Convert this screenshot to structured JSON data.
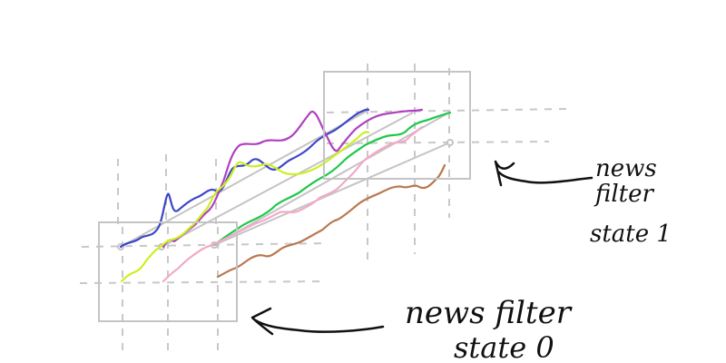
{
  "annotations": {
    "state1_line1": "news",
    "state1_line2": "filter",
    "state1_line3": "state 1",
    "state0_line1": "news filter",
    "state0_line2": "state 0"
  },
  "colors": {
    "grid": "#c8c8c8",
    "frame": "#c4c4c4",
    "ink": "#111111",
    "series": [
      "#3b47c6",
      "#b040c0",
      "#ccf020",
      "#1ec84a",
      "#f4a8c8",
      "#b87850"
    ]
  }
}
